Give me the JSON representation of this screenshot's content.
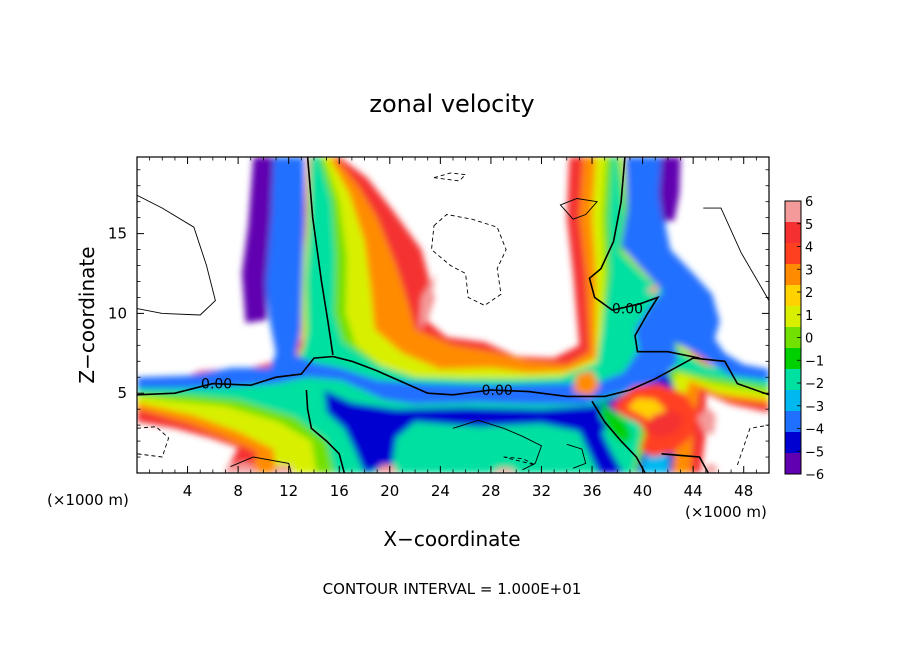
{
  "chart_data": {
    "type": "heatmap",
    "title": "zonal velocity",
    "xlabel": "X−coordinate",
    "ylabel": "Z−coordinate",
    "x_unit_left": "(×1000 m)",
    "x_unit_right": "(×1000 m)",
    "footer": "CONTOUR INTERVAL = 1.000E+01",
    "xlim": [
      0,
      50
    ],
    "ylim": [
      0,
      19.8
    ],
    "x_ticks": [
      4,
      8,
      12,
      16,
      20,
      24,
      28,
      32,
      36,
      40,
      44,
      48
    ],
    "x_tick_labels": [
      "4",
      "8",
      "12",
      "16",
      "20",
      "24",
      "28",
      "32",
      "36",
      "40",
      "44",
      "48"
    ],
    "y_ticks": [
      5,
      10,
      15
    ],
    "y_tick_labels": [
      "5",
      "10",
      "15"
    ],
    "colorbar": {
      "levels": [
        -6,
        -5,
        -4,
        -3,
        -2,
        -1,
        0,
        1,
        2,
        3,
        4,
        5,
        6
      ],
      "labels": [
        "6",
        "5",
        "4",
        "3",
        "2",
        "1",
        "0",
        "−1",
        "−2",
        "−3",
        "−4",
        "−5",
        "−6"
      ],
      "colors": [
        "#f49a9a",
        "#f43030",
        "#ff4020",
        "#ff8c00",
        "#ffd200",
        "#d8f000",
        "#72e000",
        "#00d000",
        "#00e0a0",
        "#00b8f0",
        "#2070ff",
        "#0000d0",
        "#6000b0"
      ]
    },
    "contour_labels": [
      {
        "text": "0.00",
        "x": 6.3,
        "y": 5.6
      },
      {
        "text": "0.00",
        "x": 28.5,
        "y": 5.2
      },
      {
        "text": "0.00",
        "x": 38.8,
        "y": 10.3
      }
    ],
    "zero_contour": [
      [
        [
          0,
          4.9
        ],
        [
          3,
          5.0
        ],
        [
          6,
          5.6
        ],
        [
          9,
          5.5
        ],
        [
          11,
          6.0
        ],
        [
          13,
          6.2
        ],
        [
          14,
          7.2
        ],
        [
          15.5,
          7.3
        ],
        [
          17,
          7.0
        ],
        [
          19,
          6.4
        ],
        [
          21,
          5.7
        ],
        [
          23,
          5.0
        ],
        [
          25,
          4.9
        ],
        [
          28,
          5.2
        ],
        [
          31,
          5.1
        ],
        [
          34,
          4.8
        ],
        [
          37,
          4.8
        ],
        [
          39,
          5.2
        ],
        [
          41,
          5.9
        ],
        [
          44,
          7.2
        ],
        [
          46.5,
          7.0
        ],
        [
          47.5,
          5.6
        ],
        [
          50,
          4.9
        ]
      ],
      [
        [
          13.5,
          19.8
        ],
        [
          13.9,
          16
        ],
        [
          14.6,
          12
        ],
        [
          15.1,
          9.5
        ],
        [
          15.5,
          7.4
        ]
      ],
      [
        [
          38.6,
          19.8
        ],
        [
          38.3,
          17
        ],
        [
          37.7,
          14.5
        ],
        [
          36.7,
          12.8
        ],
        [
          35.8,
          12.2
        ],
        [
          36.2,
          11.0
        ],
        [
          37.6,
          10.2
        ],
        [
          39.8,
          10.6
        ],
        [
          41.2,
          11.0
        ],
        [
          40.4,
          10.0
        ],
        [
          39.4,
          8.6
        ],
        [
          39.6,
          7.6
        ],
        [
          42,
          7.6
        ],
        [
          44.5,
          7.2
        ]
      ],
      [
        [
          13.4,
          5.2
        ],
        [
          13.5,
          4.0
        ],
        [
          13.8,
          2.8
        ],
        [
          15.0,
          2.0
        ],
        [
          16.0,
          1.2
        ],
        [
          16.4,
          0
        ]
      ],
      [
        [
          36.0,
          4.5
        ],
        [
          37.0,
          3.2
        ],
        [
          38.3,
          2.0
        ],
        [
          39.5,
          1.0
        ],
        [
          40.2,
          0
        ]
      ],
      [
        [
          41.5,
          1.2
        ],
        [
          43.0,
          1.1
        ],
        [
          44.5,
          1.0
        ],
        [
          45.2,
          0
        ]
      ]
    ],
    "neg_contour": [
      [
        [
          23.5,
          15.5
        ],
        [
          24.5,
          16.2
        ],
        [
          26.5,
          15.9
        ],
        [
          28.5,
          15.4
        ],
        [
          29.2,
          14.0
        ],
        [
          28.5,
          12.8
        ],
        [
          28.8,
          11.2
        ],
        [
          27.5,
          10.5
        ],
        [
          26.2,
          11.0
        ],
        [
          26.0,
          12.5
        ],
        [
          24.8,
          13.0
        ],
        [
          23.3,
          14.0
        ],
        [
          23.5,
          15.5
        ]
      ],
      [
        [
          23.5,
          18.5
        ],
        [
          24.8,
          18.8
        ],
        [
          26.0,
          18.7
        ],
        [
          25.5,
          18.3
        ],
        [
          23.5,
          18.5
        ]
      ],
      [
        [
          0,
          2.8
        ],
        [
          1.5,
          2.9
        ],
        [
          2.5,
          2.2
        ],
        [
          2.0,
          1.0
        ],
        [
          0,
          1.2
        ]
      ],
      [
        [
          29,
          1.0
        ],
        [
          30.5,
          0.9
        ],
        [
          31.5,
          0.5
        ],
        [
          29,
          1.0
        ]
      ],
      [
        [
          47.5,
          0.5
        ],
        [
          48.5,
          2.8
        ],
        [
          50,
          3.0
        ]
      ]
    ],
    "pos_contour": [
      [
        [
          0,
          17.4
        ],
        [
          2,
          16.6
        ],
        [
          4.5,
          15.4
        ],
        [
          5.5,
          13.0
        ],
        [
          6.2,
          10.8
        ],
        [
          5.0,
          9.9
        ],
        [
          2.0,
          10.0
        ],
        [
          0,
          10.3
        ]
      ],
      [
        [
          34.5,
          15.9
        ],
        [
          33.5,
          16.8
        ],
        [
          34.8,
          17.2
        ],
        [
          36.4,
          17.0
        ],
        [
          35.5,
          16.2
        ],
        [
          34.5,
          15.9
        ]
      ],
      [
        [
          44.8,
          16.6
        ],
        [
          46.2,
          16.6
        ],
        [
          47.8,
          13.8
        ],
        [
          50,
          10.8
        ]
      ],
      [
        [
          12.2,
          0
        ],
        [
          12.0,
          0.6
        ],
        [
          9.2,
          1.0
        ],
        [
          7.4,
          0.4
        ]
      ],
      [
        [
          25,
          2.8
        ],
        [
          27,
          3.3
        ],
        [
          29,
          2.8
        ],
        [
          30.5,
          2.3
        ],
        [
          32,
          1.7
        ],
        [
          31.5,
          0.6
        ],
        [
          30.5,
          0.2
        ]
      ],
      [
        [
          34,
          1.8
        ],
        [
          35.2,
          1.5
        ],
        [
          35.5,
          0.6
        ],
        [
          34.5,
          0.3
        ]
      ]
    ]
  }
}
